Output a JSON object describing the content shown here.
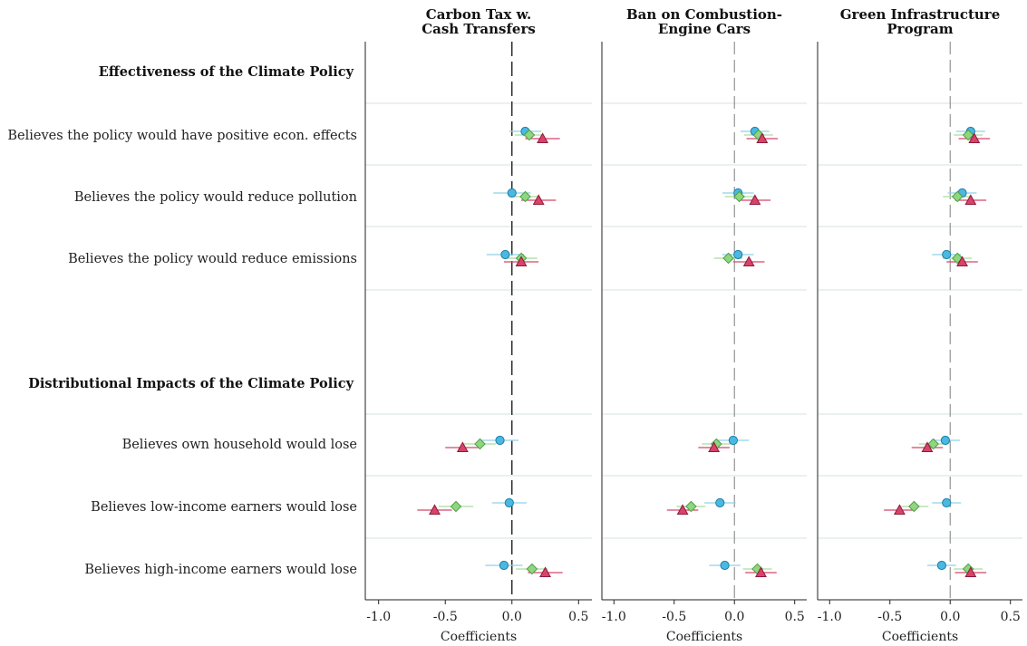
{
  "chart_data": {
    "type": "scatter",
    "xlabel": "Coefficients",
    "xlim": [
      -1.1,
      0.6
    ],
    "xticks": [
      -1.0,
      -0.5,
      0.0,
      0.5
    ],
    "xtick_labels": [
      "-1.0",
      "-0.5",
      "0.0",
      "0.5"
    ],
    "reference_line": 0,
    "legend": "none",
    "groups": [
      {
        "label": "Effectiveness of the Climate Policy",
        "row_start": 0
      },
      {
        "label": "Distributional Impacts of the Climate Policy",
        "row_start": 3
      }
    ],
    "rows": [
      "Believes the policy would have positive econ. effects",
      "Believes the policy would reduce pollution",
      "Believes the policy would reduce emissions",
      "Believes own household would lose",
      "Believes low-income earners would lose",
      "Believes high-income earners would lose"
    ],
    "series_styles": [
      {
        "marker": "circle",
        "fill": "#4ab8e0",
        "stroke": "#1b7fa8",
        "line": "#8fd0ea"
      },
      {
        "marker": "diamond",
        "fill": "#8ed67f",
        "stroke": "#4f9e45",
        "line": "#a9de9b"
      },
      {
        "marker": "triangle",
        "fill": "#d8436a",
        "stroke": "#8e1a3a",
        "line": "#d8436a"
      }
    ],
    "panels": [
      {
        "title_lines": [
          "Carbon Tax w.",
          "Cash Transfers"
        ],
        "series": [
          {
            "values": [
              0.1,
              0.0,
              -0.05,
              -0.09,
              -0.02,
              -0.06
            ],
            "ci": [
              [
                -0.02,
                0.22
              ],
              [
                -0.14,
                0.14
              ],
              [
                -0.19,
                0.09
              ],
              [
                -0.23,
                0.05
              ],
              [
                -0.15,
                0.11
              ],
              [
                -0.2,
                0.08
              ]
            ]
          },
          {
            "values": [
              0.13,
              0.1,
              0.07,
              -0.24,
              -0.42,
              0.15
            ],
            "ci": [
              [
                0.02,
                0.24
              ],
              [
                -0.01,
                0.21
              ],
              [
                -0.05,
                0.19
              ],
              [
                -0.36,
                -0.12
              ],
              [
                -0.55,
                -0.29
              ],
              [
                0.03,
                0.27
              ]
            ]
          },
          {
            "values": [
              0.23,
              0.2,
              0.07,
              -0.37,
              -0.58,
              0.25
            ],
            "ci": [
              [
                0.1,
                0.36
              ],
              [
                0.07,
                0.33
              ],
              [
                -0.06,
                0.2
              ],
              [
                -0.5,
                -0.24
              ],
              [
                -0.71,
                -0.45
              ],
              [
                0.12,
                0.38
              ]
            ]
          }
        ]
      },
      {
        "title_lines": [
          "Ban on Combustion-",
          "Engine Cars"
        ],
        "series": [
          {
            "values": [
              0.17,
              0.03,
              0.03,
              -0.01,
              -0.12,
              -0.08
            ],
            "ci": [
              [
                0.05,
                0.29
              ],
              [
                -0.1,
                0.16
              ],
              [
                -0.1,
                0.16
              ],
              [
                -0.14,
                0.12
              ],
              [
                -0.25,
                0.01
              ],
              [
                -0.21,
                0.05
              ]
            ]
          },
          {
            "values": [
              0.2,
              0.04,
              -0.05,
              -0.15,
              -0.36,
              0.19
            ],
            "ci": [
              [
                0.08,
                0.32
              ],
              [
                -0.08,
                0.16
              ],
              [
                -0.17,
                0.07
              ],
              [
                -0.27,
                -0.03
              ],
              [
                -0.48,
                -0.24
              ],
              [
                0.07,
                0.31
              ]
            ]
          },
          {
            "values": [
              0.23,
              0.17,
              0.12,
              -0.17,
              -0.43,
              0.22
            ],
            "ci": [
              [
                0.1,
                0.36
              ],
              [
                0.04,
                0.3
              ],
              [
                -0.01,
                0.25
              ],
              [
                -0.3,
                -0.04
              ],
              [
                -0.56,
                -0.3
              ],
              [
                0.09,
                0.35
              ]
            ]
          }
        ]
      },
      {
        "title_lines": [
          "Green Infrastructure",
          "Program"
        ],
        "series": [
          {
            "values": [
              0.17,
              0.1,
              -0.03,
              -0.04,
              -0.03,
              -0.07
            ],
            "ci": [
              [
                0.05,
                0.29
              ],
              [
                -0.02,
                0.22
              ],
              [
                -0.15,
                0.09
              ],
              [
                -0.16,
                0.08
              ],
              [
                -0.15,
                0.09
              ],
              [
                -0.19,
                0.05
              ]
            ]
          },
          {
            "values": [
              0.15,
              0.06,
              0.06,
              -0.14,
              -0.3,
              0.15
            ],
            "ci": [
              [
                0.03,
                0.27
              ],
              [
                -0.06,
                0.18
              ],
              [
                -0.06,
                0.18
              ],
              [
                -0.26,
                -0.02
              ],
              [
                -0.42,
                -0.18
              ],
              [
                0.03,
                0.27
              ]
            ]
          },
          {
            "values": [
              0.2,
              0.17,
              0.1,
              -0.19,
              -0.42,
              0.17
            ],
            "ci": [
              [
                0.07,
                0.33
              ],
              [
                0.04,
                0.3
              ],
              [
                -0.03,
                0.23
              ],
              [
                -0.32,
                -0.06
              ],
              [
                -0.55,
                -0.29
              ],
              [
                0.04,
                0.3
              ]
            ]
          }
        ]
      }
    ]
  }
}
